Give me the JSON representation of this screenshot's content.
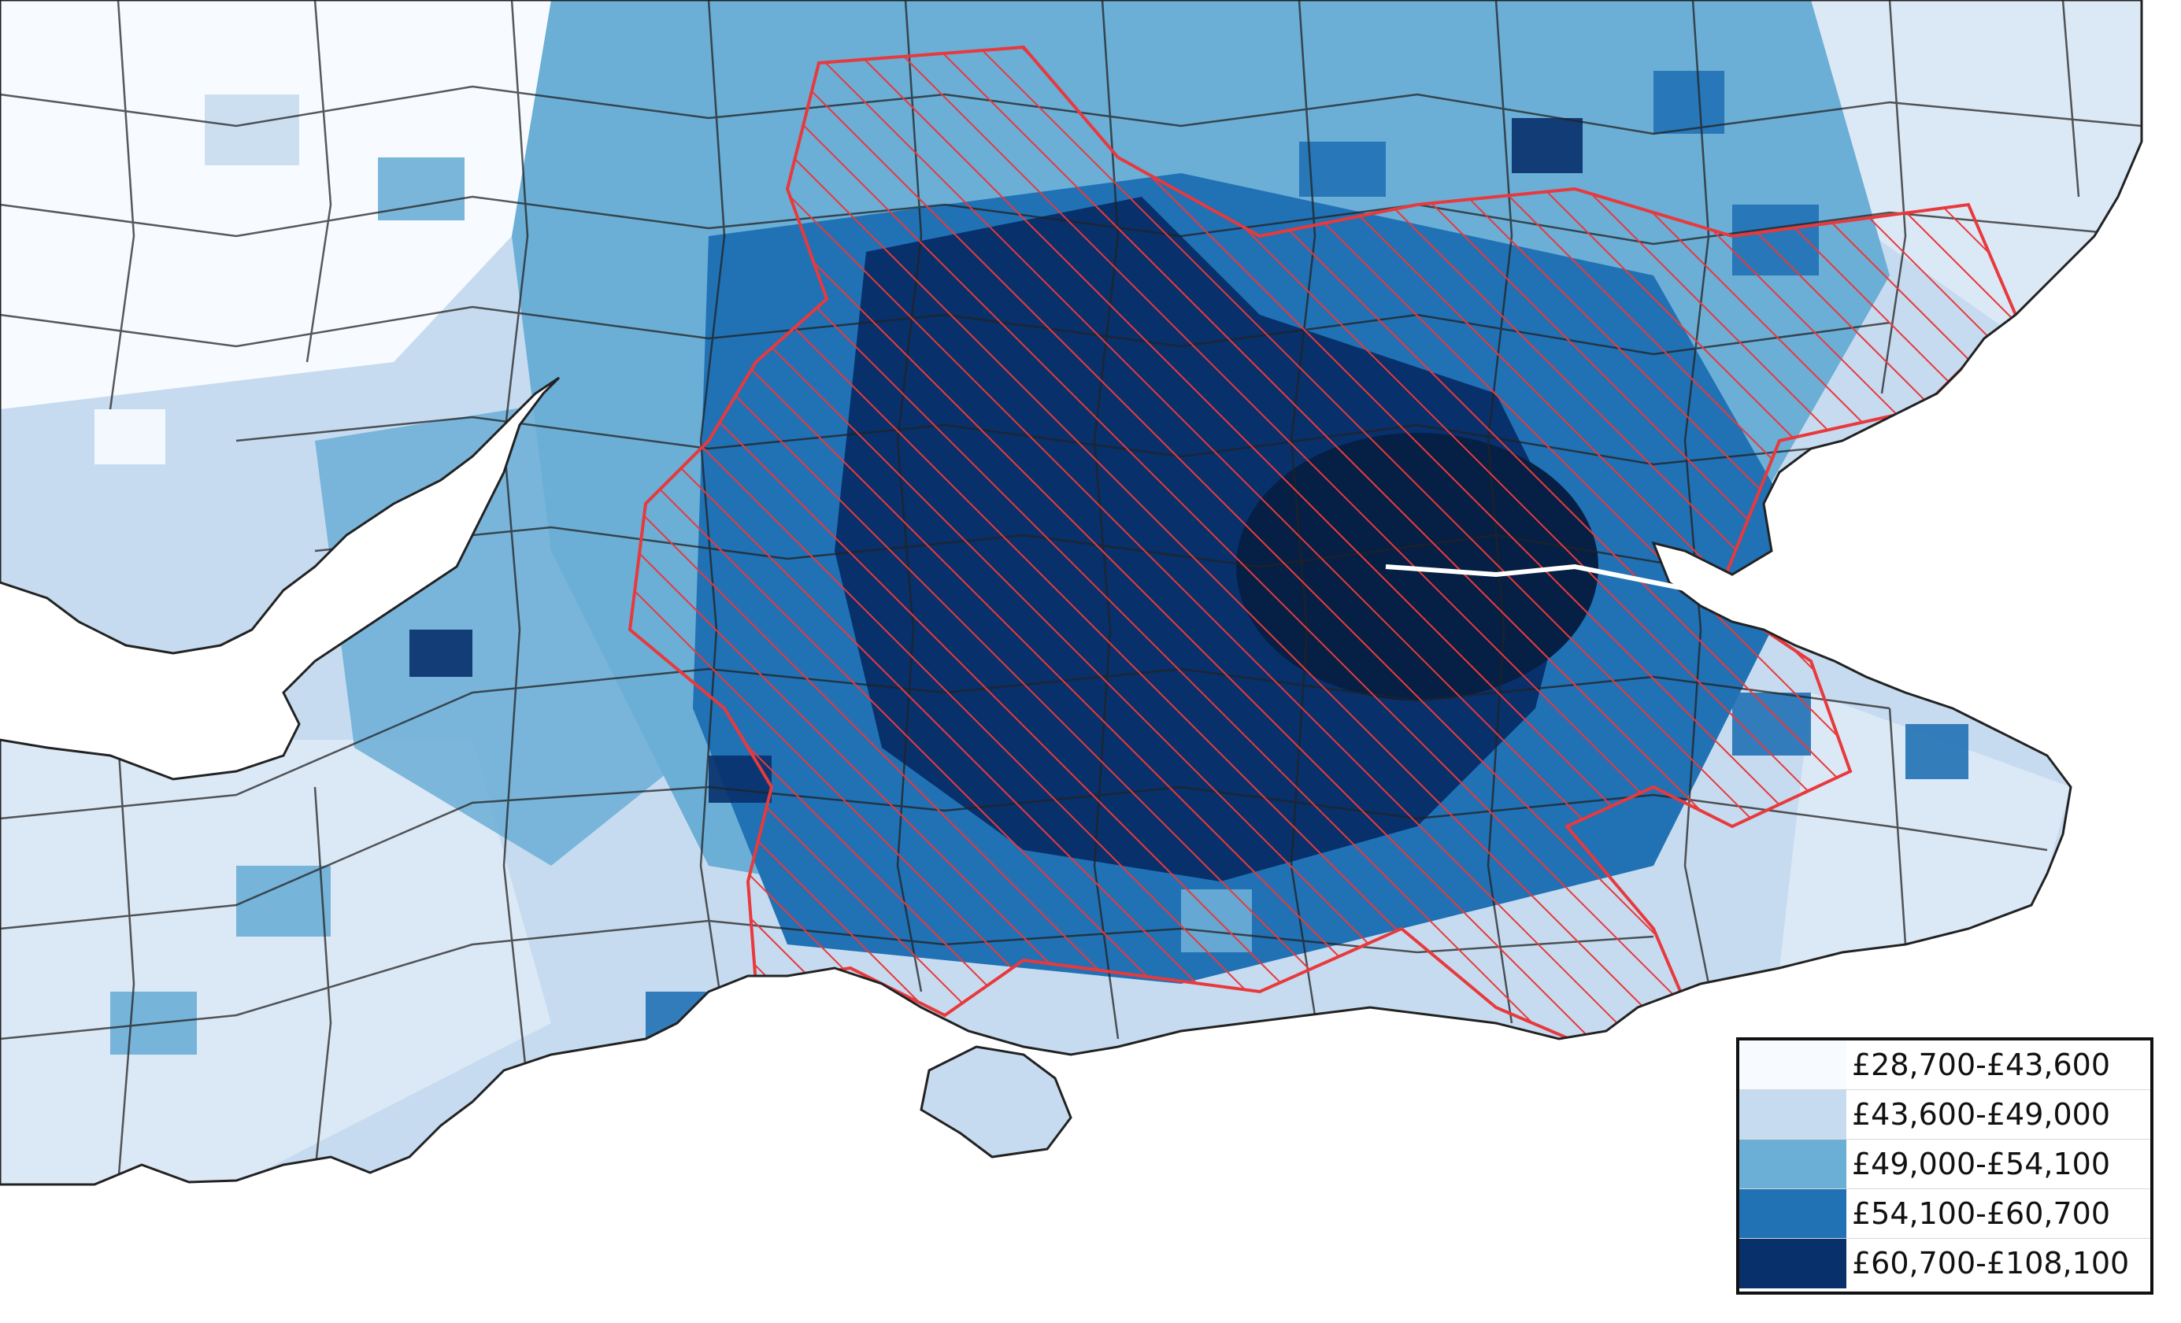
{
  "map": {
    "title": "",
    "palette": [
      "#f7fbff",
      "#c6dbef",
      "#6baed6",
      "#2171b5",
      "#08306b"
    ],
    "boundary_color": "#222222",
    "overlay_color": "#e8393c",
    "overlay_pattern": "diagonal-hatch"
  },
  "legend": {
    "items": [
      {
        "label": "£28,700-£43,600",
        "color": "#f7fbff"
      },
      {
        "label": "£43,600-£49,000",
        "color": "#c6dbef"
      },
      {
        "label": "£49,000-£54,100",
        "color": "#6baed6"
      },
      {
        "label": "£54,100-£60,700",
        "color": "#2171b5"
      },
      {
        "label": "£60,700-£108,100",
        "color": "#08306b"
      }
    ]
  }
}
